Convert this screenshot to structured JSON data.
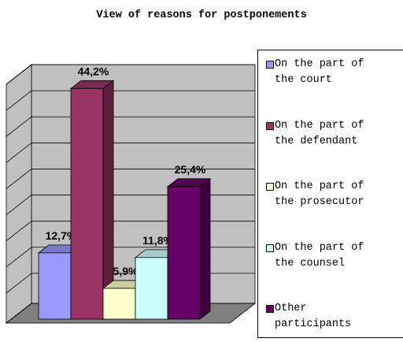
{
  "chart_data": {
    "type": "bar3d",
    "title": "View of reasons for postponements",
    "categories": [
      "On the part of the court",
      "On the part of the defendant",
      "On the part of the prosecutor",
      "On the part of the counsel",
      "Other participants"
    ],
    "values": [
      12.7,
      44.2,
      5.9,
      11.8,
      25.4
    ],
    "value_labels": [
      "12,7%",
      "44,2%",
      "5,9%",
      "11,8%",
      "25,4%"
    ],
    "colors": [
      "#9999ff",
      "#993366",
      "#ffffcc",
      "#ccffff",
      "#660066"
    ],
    "ylim": [
      0,
      45
    ],
    "yticks": [
      0,
      5,
      10,
      15,
      20,
      25,
      30,
      35,
      40,
      45
    ],
    "grid": true,
    "legend": "right"
  }
}
